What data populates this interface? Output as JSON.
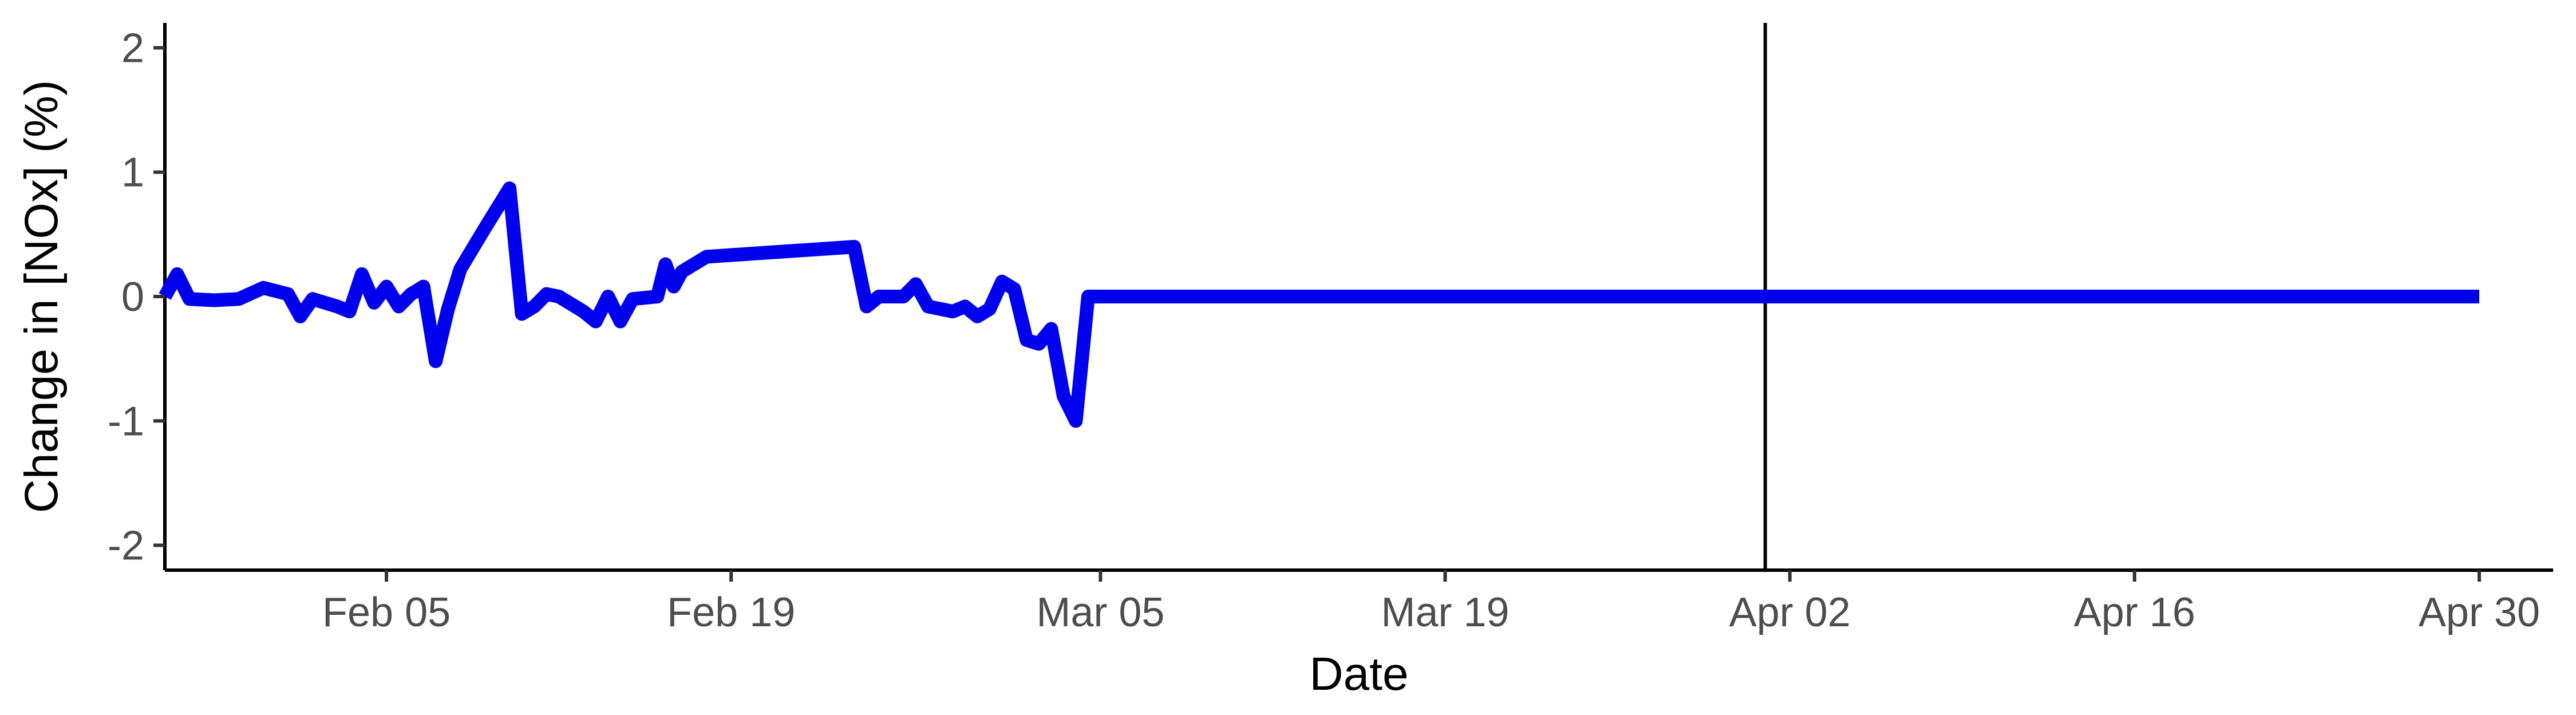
{
  "chart_data": {
    "type": "line",
    "xlabel": "Date",
    "ylabel": "Change in [NOx] (%)",
    "xlim": [
      "2020-01-27",
      "2020-05-03"
    ],
    "ylim": [
      -2.2,
      2.2
    ],
    "x_ticks": [
      {
        "date": "2020-02-05",
        "label": "Feb 05"
      },
      {
        "date": "2020-02-19",
        "label": "Feb 19"
      },
      {
        "date": "2020-03-05",
        "label": "Mar 05"
      },
      {
        "date": "2020-03-19",
        "label": "Mar 19"
      },
      {
        "date": "2020-04-02",
        "label": "Apr 02"
      },
      {
        "date": "2020-04-16",
        "label": "Apr 16"
      },
      {
        "date": "2020-04-30",
        "label": "Apr 30"
      }
    ],
    "y_ticks": [
      {
        "value": 2,
        "label": "2"
      },
      {
        "value": 1,
        "label": "1"
      },
      {
        "value": 0,
        "label": "0"
      },
      {
        "value": -1,
        "label": "-1"
      },
      {
        "value": -2,
        "label": "-2"
      }
    ],
    "vline_date": "2020-04-01",
    "grid": false,
    "line_color": "#0000ee",
    "points": [
      {
        "x": "2020-01-27",
        "y": 0.0
      },
      {
        "x": "2020-01-27",
        "y": 0.18
      },
      {
        "x": "2020-01-28",
        "y": -0.02
      },
      {
        "x": "2020-01-29",
        "y": -0.03
      },
      {
        "x": "2020-01-30",
        "y": -0.02
      },
      {
        "x": "2020-01-31",
        "y": 0.07
      },
      {
        "x": "2020-02-01",
        "y": 0.02
      },
      {
        "x": "2020-02-01",
        "y": -0.16
      },
      {
        "x": "2020-02-02",
        "y": -0.02
      },
      {
        "x": "2020-02-03",
        "y": -0.08
      },
      {
        "x": "2020-02-03",
        "y": -0.12
      },
      {
        "x": "2020-02-04",
        "y": 0.18
      },
      {
        "x": "2020-02-04",
        "y": -0.05
      },
      {
        "x": "2020-02-05",
        "y": 0.08
      },
      {
        "x": "2020-02-05",
        "y": -0.08
      },
      {
        "x": "2020-02-06",
        "y": 0.02
      },
      {
        "x": "2020-02-06",
        "y": 0.08
      },
      {
        "x": "2020-02-07",
        "y": -0.52
      },
      {
        "x": "2020-02-07",
        "y": -0.1
      },
      {
        "x": "2020-02-08",
        "y": 0.22
      },
      {
        "x": "2020-02-09",
        "y": 0.55
      },
      {
        "x": "2020-02-10",
        "y": 0.87
      },
      {
        "x": "2020-02-10",
        "y": -0.14
      },
      {
        "x": "2020-02-11",
        "y": -0.08
      },
      {
        "x": "2020-02-11",
        "y": 0.02
      },
      {
        "x": "2020-02-12",
        "y": 0.0
      },
      {
        "x": "2020-02-13",
        "y": -0.12
      },
      {
        "x": "2020-02-13",
        "y": -0.2
      },
      {
        "x": "2020-02-14",
        "y": 0.0
      },
      {
        "x": "2020-02-14",
        "y": -0.2
      },
      {
        "x": "2020-02-15",
        "y": -0.02
      },
      {
        "x": "2020-02-16",
        "y": 0.0
      },
      {
        "x": "2020-02-16",
        "y": 0.26
      },
      {
        "x": "2020-02-16",
        "y": 0.08
      },
      {
        "x": "2020-02-17",
        "y": 0.2
      },
      {
        "x": "2020-02-18",
        "y": 0.32
      },
      {
        "x": "2020-02-24",
        "y": 0.4
      },
      {
        "x": "2020-02-24",
        "y": -0.08
      },
      {
        "x": "2020-02-25",
        "y": 0.0
      },
      {
        "x": "2020-02-26",
        "y": 0.0
      },
      {
        "x": "2020-02-26",
        "y": 0.1
      },
      {
        "x": "2020-02-27",
        "y": -0.08
      },
      {
        "x": "2020-02-28",
        "y": -0.12
      },
      {
        "x": "2020-02-28",
        "y": -0.08
      },
      {
        "x": "2020-02-29",
        "y": -0.16
      },
      {
        "x": "2020-02-29",
        "y": -0.1
      },
      {
        "x": "2020-03-01",
        "y": 0.12
      },
      {
        "x": "2020-03-01",
        "y": 0.06
      },
      {
        "x": "2020-03-02",
        "y": -0.35
      },
      {
        "x": "2020-03-02",
        "y": -0.38
      },
      {
        "x": "2020-03-03",
        "y": -0.26
      },
      {
        "x": "2020-03-03",
        "y": -0.8
      },
      {
        "x": "2020-03-04",
        "y": -1.0
      },
      {
        "x": "2020-03-04",
        "y": 0.0
      },
      {
        "x": "2020-04-30",
        "y": 0.0
      }
    ]
  }
}
